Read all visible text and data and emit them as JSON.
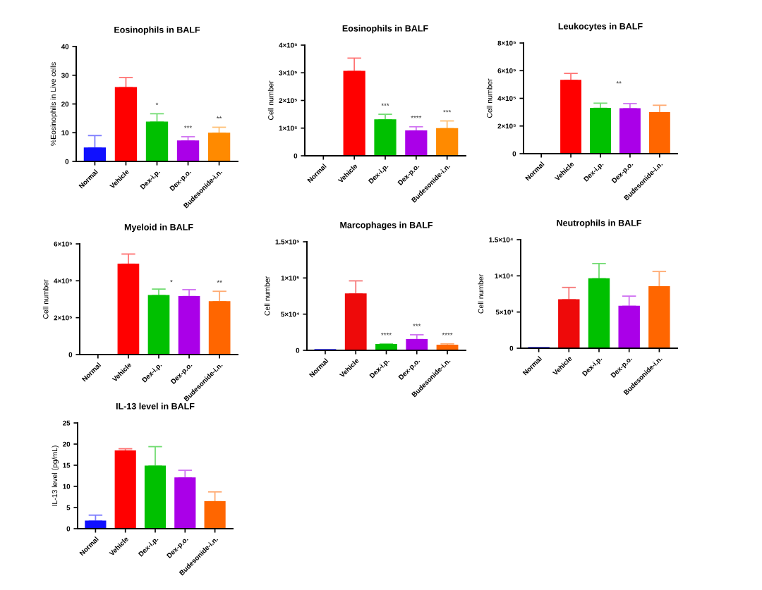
{
  "chart_data": [
    {
      "type": "bar",
      "title": "Eosinophils in BALF",
      "ylabel": "%Eosinophils in Live cells",
      "categories": [
        "Normal",
        "Vehicle",
        "Dex-i.p.",
        "Dex-p.o.",
        "Budesonide-i.n."
      ],
      "values": [
        4.7,
        25.7,
        13.7,
        7.1,
        9.8
      ],
      "colors": [
        "#1010ff",
        "#ff0000",
        "#00c000",
        "#aa00e8",
        "#ff8a00"
      ],
      "errors": [
        [
          4.7,
          9.0
        ],
        [
          25.7,
          29.2
        ],
        [
          13.7,
          16.6
        ],
        [
          7.1,
          8.6
        ],
        [
          9.8,
          11.9
        ]
      ],
      "ylim": [
        0,
        40
      ],
      "yticks": [
        0,
        10,
        20,
        30,
        40
      ],
      "annotations": [
        {
          "text": "*",
          "x": "Dex-i.p.",
          "y": 16.6
        },
        {
          "text": "***",
          "x": "Dex-p.o.",
          "y": 8.6
        },
        {
          "text": "**",
          "x": "Budesonide-i.n.",
          "y": 11.9
        }
      ]
    },
    {
      "type": "bar",
      "title": "Eosinophils in BALF",
      "ylabel": "Cell number",
      "categories": [
        "Normal",
        "Vehicle",
        "Dex-i.p.",
        "Dex-p.o.",
        "Budesonide-i.n."
      ],
      "values": [
        0,
        305000,
        130000,
        90000,
        98000
      ],
      "colors": [
        "#1010ff",
        "#ff0000",
        "#00c000",
        "#aa00e8",
        "#ff8a00"
      ],
      "errors": [
        null,
        [
          305000,
          353000
        ],
        [
          130000,
          150000
        ],
        [
          90000,
          105000
        ],
        [
          98000,
          126000
        ]
      ],
      "ylim": [
        0,
        400000
      ],
      "yticks": [
        0,
        {
          "value": 100000,
          "label": "1×10⁵"
        },
        {
          "value": 200000,
          "label": "2×10⁵"
        },
        {
          "value": 300000,
          "label": "3×10⁵"
        },
        {
          "value": 400000,
          "label": "4×10⁵"
        }
      ],
      "annotations": [
        {
          "text": "***",
          "x": "Dex-i.p.",
          "y": 150000
        },
        {
          "text": "****",
          "x": "Dex-p.o.",
          "y": 105000
        },
        {
          "text": "***",
          "x": "Budesonide-i.n.",
          "y": 126000
        }
      ]
    },
    {
      "type": "bar",
      "title": "Leukocytes in BALF",
      "ylabel": "Cell number",
      "categories": [
        "Normal",
        "Vehicle",
        "Dex-i.p.",
        "Dex-p.o.",
        "Budesonide-i.n."
      ],
      "values": [
        0,
        530000,
        328000,
        325000,
        297000
      ],
      "colors": [
        "#1010ff",
        "#ff0000",
        "#00c000",
        "#aa00e8",
        "#ff6600"
      ],
      "errors": [
        null,
        [
          530000,
          580000
        ],
        [
          328000,
          365000
        ],
        [
          325000,
          362000
        ],
        [
          297000,
          350000
        ]
      ],
      "ylim": [
        0,
        800000
      ],
      "yticks": [
        0,
        {
          "value": 200000,
          "label": "2×10⁵"
        },
        {
          "value": 400000,
          "label": "4×10⁵"
        },
        {
          "value": 600000,
          "label": "6×10⁵"
        },
        {
          "value": 800000,
          "label": "8×10⁵"
        }
      ],
      "annotations": [
        "**"
      ]
    },
    {
      "type": "bar",
      "title": "Myeloid in BALF",
      "ylabel": "Cell number",
      "categories": [
        "Normal",
        "Vehicle",
        "Dex-i.p.",
        "Dex-p.o.",
        "Budesonide-i.n."
      ],
      "values": [
        0,
        490000,
        320000,
        315000,
        287000
      ],
      "colors": [
        "#1010ff",
        "#ff0000",
        "#00c000",
        "#aa00e8",
        "#ff6600"
      ],
      "errors": [
        null,
        [
          490000,
          545000
        ],
        [
          320000,
          355000
        ],
        [
          315000,
          352000
        ],
        [
          287000,
          343000
        ]
      ],
      "ylim": [
        0,
        600000
      ],
      "yticks": [
        0,
        {
          "value": 200000,
          "label": "2×10⁵"
        },
        {
          "value": 400000,
          "label": "4×10⁵"
        },
        {
          "value": 600000,
          "label": "6×10⁵"
        }
      ],
      "annotations": [
        "*",
        {
          "text": "**",
          "x": "Budesonide-i.n.",
          "y": 343000
        }
      ]
    },
    {
      "type": "bar",
      "title": "Marcophages in BALF",
      "ylabel": "Cell number",
      "categories": [
        "Normal",
        "Vehicle",
        "Dex-i.p.",
        "Dex-p.o.",
        "Budesonide-i.n."
      ],
      "values": [
        1000,
        78000,
        8000,
        15000,
        7000
      ],
      "colors": [
        "#1010ff",
        "#ee0a0a",
        "#00c000",
        "#aa00e8",
        "#ff6600"
      ],
      "errors": [
        null,
        [
          78000,
          96000
        ],
        [
          8000,
          9000
        ],
        [
          15000,
          21500
        ],
        [
          7000,
          9000
        ]
      ],
      "ylim": [
        0,
        150000
      ],
      "yticks": [
        0,
        {
          "value": 50000,
          "label": "5×10⁴"
        },
        {
          "value": 100000,
          "label": "1×10⁵"
        },
        {
          "value": 150000,
          "label": "1.5×10⁵"
        }
      ],
      "annotations": [
        {
          "text": "****",
          "x": "Dex-i.p.",
          "y": 9000
        },
        {
          "text": "***",
          "x": "Dex-p.o.",
          "y": 21500
        },
        {
          "text": "****",
          "x": "Budesonide-i.n.",
          "y": 9000
        }
      ]
    },
    {
      "type": "bar",
      "title": "Neutrophils in BALF",
      "ylabel": "Cell number",
      "categories": [
        "Normal",
        "Vehicle",
        "Dex-i.p.",
        "Dex-p.o.",
        "Budesonide-i.n."
      ],
      "values": [
        100,
        6700,
        9600,
        5800,
        8500
      ],
      "colors": [
        "#1010ff",
        "#ee0a0a",
        "#00c000",
        "#aa00e8",
        "#ff6600"
      ],
      "errors": [
        null,
        [
          6700,
          8400
        ],
        [
          9600,
          11700
        ],
        [
          5800,
          7200
        ],
        [
          8500,
          10600
        ]
      ],
      "ylim": [
        0,
        15000
      ],
      "yticks": [
        0,
        {
          "value": 5000,
          "label": "5×10³"
        },
        {
          "value": 10000,
          "label": "1×10⁴"
        },
        {
          "value": 15000,
          "label": "1.5×10⁴"
        }
      ]
    },
    {
      "type": "bar",
      "title": "IL-13 level in BALF",
      "ylabel": "IL-13 level (pg/mL)",
      "categories": [
        "Normal",
        "Vehicle",
        "Dex-i.p.",
        "Dex-p.o.",
        "Budesonide-i.n."
      ],
      "values": [
        1.8,
        18.4,
        14.8,
        12.0,
        6.4
      ],
      "colors": [
        "#1010ff",
        "#ff0000",
        "#00c000",
        "#aa00e8",
        "#ff6600"
      ],
      "errors": [
        [
          1.8,
          3.2
        ],
        [
          18.4,
          18.9
        ],
        [
          14.8,
          19.4
        ],
        [
          12.0,
          13.8
        ],
        [
          6.4,
          8.7
        ]
      ],
      "ylim": [
        0,
        25
      ],
      "yticks": [
        0,
        5,
        10,
        15,
        20,
        25
      ]
    }
  ]
}
